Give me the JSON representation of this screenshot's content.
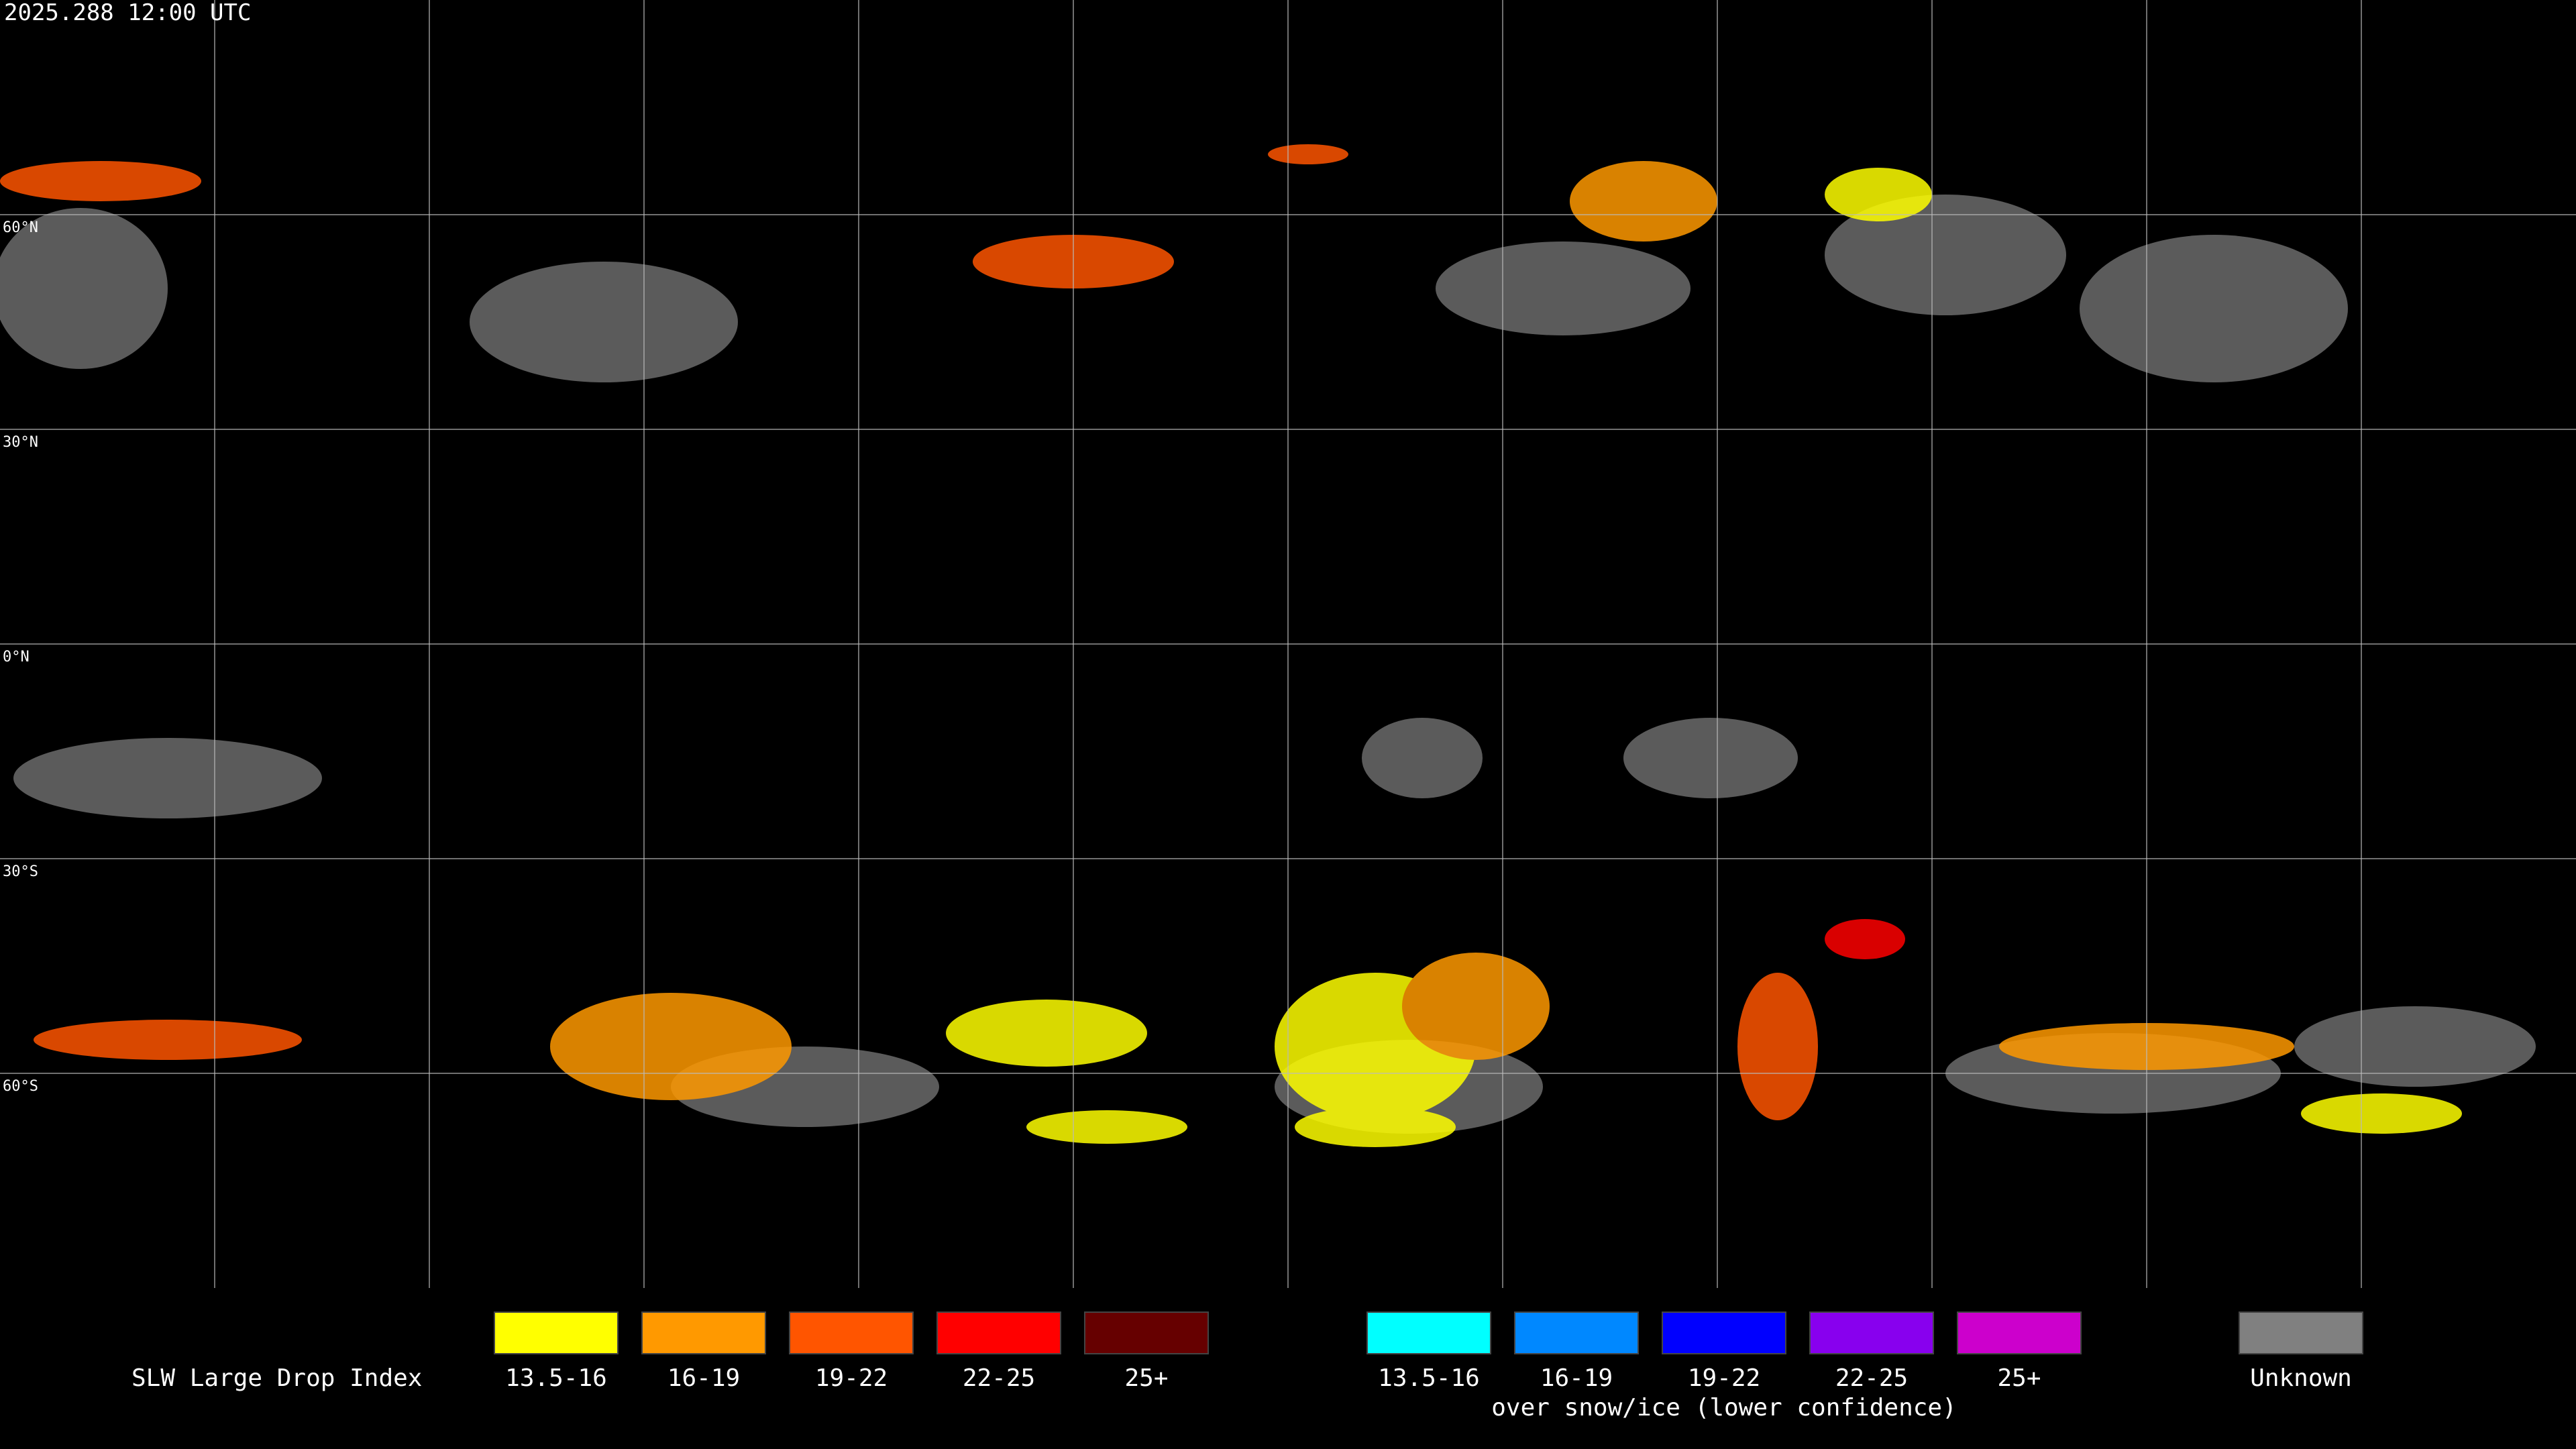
{
  "header": {
    "timestamp": "2025.288 12:00 UTC"
  },
  "map": {
    "latitude_labels": [
      "60°N",
      "30°N",
      "0°N",
      "30°S",
      "60°S"
    ]
  },
  "legend": {
    "title": "SLW Large Drop Index",
    "groups": [
      {
        "items": [
          {
            "label": "13.5-16",
            "color": "#ffff00"
          },
          {
            "label": "16-19",
            "color": "#ff9900"
          },
          {
            "label": "19-22",
            "color": "#ff5500"
          },
          {
            "label": "22-25",
            "color": "#ff0000"
          },
          {
            "label": "25+",
            "color": "#660000"
          }
        ]
      },
      {
        "caption": "over snow/ice (lower confidence)",
        "items": [
          {
            "label": "13.5-16",
            "color": "#00ffff"
          },
          {
            "label": "16-19",
            "color": "#0088ff"
          },
          {
            "label": "19-22",
            "color": "#0000ff"
          },
          {
            "label": "22-25",
            "color": "#8800ee"
          },
          {
            "label": "25+",
            "color": "#cc00cc"
          }
        ]
      },
      {
        "items": [
          {
            "label": "Unknown",
            "color": "#808080"
          }
        ]
      }
    ]
  }
}
